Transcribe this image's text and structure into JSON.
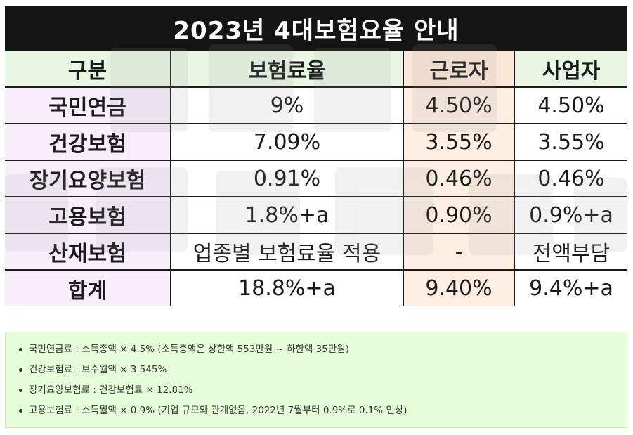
{
  "title": "2023년 4대보험요율 안내",
  "table": {
    "headers": [
      "구분",
      "보험료율",
      "근로자",
      "사업자"
    ],
    "rows": [
      [
        "국민연금",
        "9%",
        "4.50%",
        "4.50%"
      ],
      [
        "건강보험",
        "7.09%",
        "3.55%",
        "3.55%"
      ],
      [
        "장기요양보험",
        "0.91%",
        "0.46%",
        "0.46%"
      ],
      [
        "고용보험",
        "1.8%+a",
        "0.90%",
        "0.9%+a"
      ],
      [
        "산재보험",
        "업종별 보험료율 적용",
        "-",
        "전액부담"
      ],
      [
        "합계",
        "18.8%+a",
        "9.40%",
        "9.4%+a"
      ]
    ]
  },
  "notes": [
    "국민연금료 : 소득총액 × 4.5% (소득총액은 상한액 553만원 ~ 하한액 35만원)",
    "건강보험료 : 보수월액 × 3.545%",
    "장기요양보험료 : 건강보험료 × 12.81%",
    "고용보험료 : 소득월액 × 0.9% (기업 규모와 관계없음, 2022년 7월부터 0.9%로 0.1% 인상)"
  ],
  "colors": {
    "title_bg": "#141414",
    "header_bg": "#eaf6e4",
    "worker_col_bg": "#fdeee2",
    "label_col_bg": "#f7eefa",
    "notes_bg": "#e6fdd9"
  }
}
